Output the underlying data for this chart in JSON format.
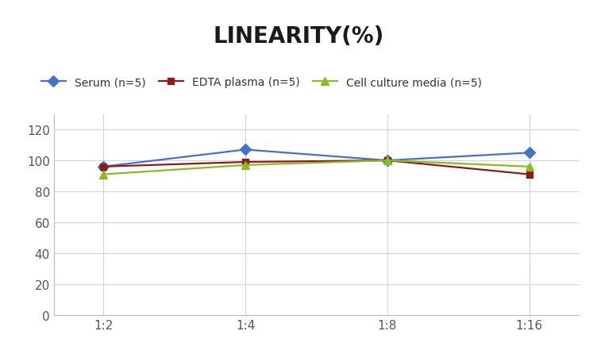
{
  "title": "LINEARITY(%)",
  "x_labels": [
    "1:2",
    "1:4",
    "1:8",
    "1:16"
  ],
  "x_positions": [
    0,
    1,
    2,
    3
  ],
  "series": [
    {
      "label": "Serum (n=5)",
      "values": [
        96,
        107,
        100,
        105
      ],
      "color": "#4472C4",
      "marker": "D",
      "markersize": 7,
      "linewidth": 1.6
    },
    {
      "label": "EDTA plasma (n=5)",
      "values": [
        96,
        99,
        100,
        91
      ],
      "color": "#8B1A1A",
      "marker": "s",
      "markersize": 6,
      "linewidth": 1.6
    },
    {
      "label": "Cell culture media (n=5)",
      "values": [
        91,
        97,
        100,
        96
      ],
      "color": "#8DB925",
      "marker": "^",
      "markersize": 7,
      "linewidth": 1.6
    }
  ],
  "ylim": [
    0,
    130
  ],
  "yticks": [
    0,
    20,
    40,
    60,
    80,
    100,
    120
  ],
  "background_color": "#FFFFFF",
  "grid_color": "#D3D3D3",
  "title_fontsize": 20,
  "title_fontweight": "bold",
  "legend_fontsize": 10,
  "tick_fontsize": 11,
  "tick_color": "#555555"
}
